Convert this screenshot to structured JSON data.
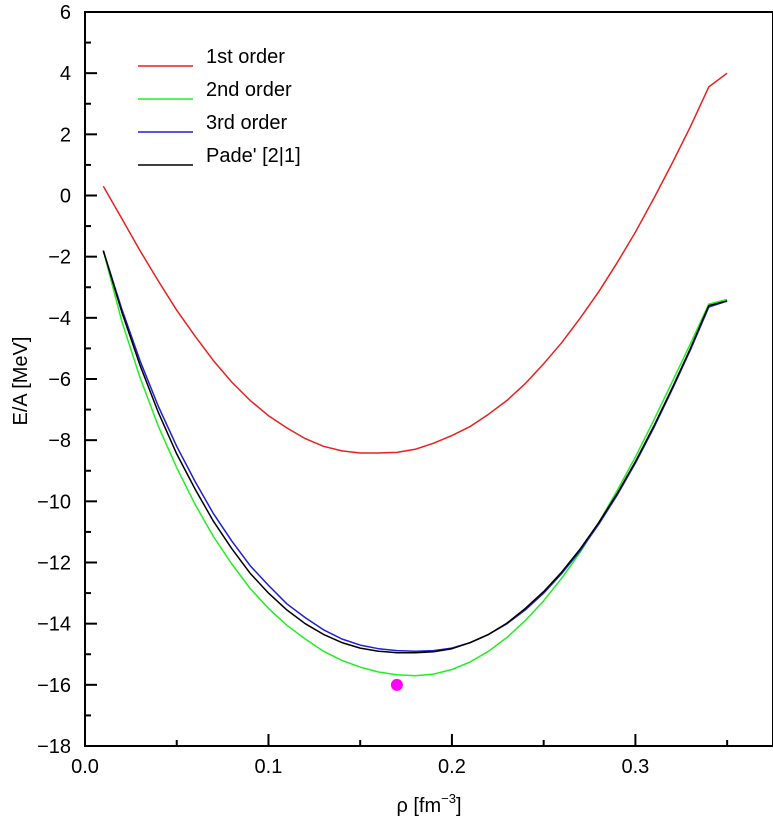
{
  "chart_data": {
    "type": "line",
    "xlabel_main": "ρ [fm",
    "xlabel_sup": "−3",
    "xlabel_end": "]",
    "ylabel": "E/A [MeV]",
    "xlim": [
      0.0,
      0.375
    ],
    "ylim": [
      -18,
      6
    ],
    "x_ticks": [
      0.0,
      0.1,
      0.2,
      0.3
    ],
    "x_tick_labels": [
      "0.0",
      "0.1",
      "0.2",
      "0.3"
    ],
    "y_ticks": [
      6,
      4,
      2,
      0,
      -2,
      -4,
      -6,
      -8,
      -10,
      -12,
      -14,
      -16,
      -18
    ],
    "y_tick_labels": [
      "6",
      "4",
      "2",
      "0",
      "−2",
      "−4",
      "−6",
      "−8",
      "−10",
      "−12",
      "−14",
      "−16",
      "−18"
    ],
    "grid": false,
    "legend_position": "top-left",
    "x": [
      0.01,
      0.02,
      0.03,
      0.04,
      0.05,
      0.06,
      0.07,
      0.08,
      0.09,
      0.1,
      0.11,
      0.12,
      0.13,
      0.14,
      0.15,
      0.16,
      0.17,
      0.18,
      0.19,
      0.2,
      0.21,
      0.22,
      0.23,
      0.24,
      0.25,
      0.26,
      0.27,
      0.28,
      0.29,
      0.3,
      0.31,
      0.32,
      0.33,
      0.34,
      0.35
    ],
    "series": [
      {
        "name": "1st order",
        "color": "#e8201e",
        "values": [
          0.3,
          -0.75,
          -1.8,
          -2.8,
          -3.75,
          -4.6,
          -5.4,
          -6.1,
          -6.7,
          -7.2,
          -7.6,
          -7.95,
          -8.2,
          -8.35,
          -8.42,
          -8.42,
          -8.4,
          -8.3,
          -8.1,
          -7.85,
          -7.55,
          -7.15,
          -6.7,
          -6.15,
          -5.5,
          -4.8,
          -4.0,
          -3.15,
          -2.2,
          -1.2,
          -0.1,
          1.05,
          2.25,
          3.55,
          4.0
        ]
      },
      {
        "name": "2nd order",
        "color": "#22ee22",
        "values": [
          -1.8,
          -4.1,
          -5.95,
          -7.55,
          -8.9,
          -10.1,
          -11.15,
          -12.05,
          -12.85,
          -13.5,
          -14.05,
          -14.5,
          -14.9,
          -15.2,
          -15.42,
          -15.58,
          -15.67,
          -15.7,
          -15.65,
          -15.5,
          -15.25,
          -14.9,
          -14.45,
          -13.9,
          -13.25,
          -12.5,
          -11.65,
          -10.7,
          -9.65,
          -8.55,
          -7.35,
          -6.1,
          -4.85,
          -3.55,
          -3.4
        ]
      },
      {
        "name": "3rd order",
        "color": "#1f1fd6",
        "values": [
          -1.8,
          -3.7,
          -5.4,
          -6.9,
          -8.2,
          -9.35,
          -10.4,
          -11.3,
          -12.1,
          -12.75,
          -13.35,
          -13.8,
          -14.2,
          -14.5,
          -14.7,
          -14.82,
          -14.88,
          -14.9,
          -14.88,
          -14.8,
          -14.62,
          -14.35,
          -14.0,
          -13.55,
          -13.0,
          -12.35,
          -11.6,
          -10.75,
          -9.8,
          -8.75,
          -7.6,
          -6.35,
          -5.05,
          -3.65,
          -3.45
        ]
      },
      {
        "name": "Pade' [2|1]",
        "color": "#000000",
        "values": [
          -1.8,
          -3.8,
          -5.55,
          -7.1,
          -8.45,
          -9.6,
          -10.65,
          -11.55,
          -12.35,
          -13.0,
          -13.55,
          -14.0,
          -14.35,
          -14.62,
          -14.8,
          -14.9,
          -14.95,
          -14.95,
          -14.92,
          -14.82,
          -14.62,
          -14.35,
          -13.98,
          -13.5,
          -12.95,
          -12.3,
          -11.55,
          -10.7,
          -9.75,
          -8.7,
          -7.55,
          -6.3,
          -5.0,
          -3.6,
          -3.45
        ]
      }
    ],
    "points": [
      {
        "x": 0.17,
        "y": -16.0,
        "color": "#ff00ff"
      }
    ]
  }
}
